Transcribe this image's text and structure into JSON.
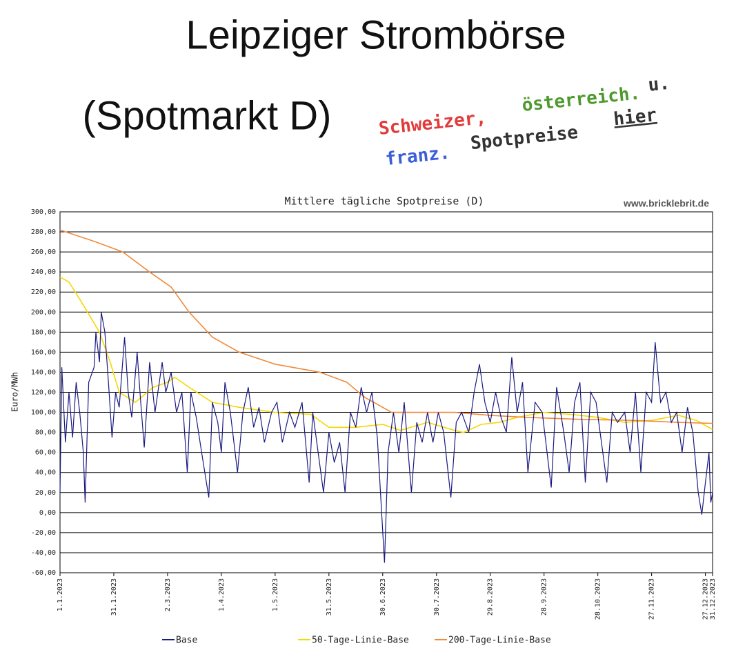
{
  "header": {
    "title": "Leipziger Strombörse",
    "subtitle": "(Spotmarkt D)",
    "link": [
      {
        "text": "Schweizer,",
        "color": "#e23b3b"
      },
      {
        "text": "österreich.",
        "color": "#4e9a2e"
      },
      {
        "text": "u.",
        "color": "#333333"
      },
      {
        "text": "franz.",
        "color": "#3a5fd8"
      },
      {
        "text": "Spotpreise",
        "color": "#333333"
      },
      {
        "text": "hier",
        "color": "#333333"
      }
    ]
  },
  "chart_data": {
    "type": "line",
    "title": "Mittlere tägliche Spotpreise (D)",
    "watermark": "www.bricklebrit.de",
    "y_label": "Euro/MWh",
    "grid": true,
    "xlim": [
      0,
      364
    ],
    "ylim": [
      -60,
      300
    ],
    "xticks": [
      {
        "value": 0,
        "label": "1.1.2023"
      },
      {
        "value": 30,
        "label": "31.1.2023"
      },
      {
        "value": 60,
        "label": "2.3.2023"
      },
      {
        "value": 90,
        "label": "1.4.2023"
      },
      {
        "value": 120,
        "label": "1.5.2023"
      },
      {
        "value": 150,
        "label": "31.5.2023"
      },
      {
        "value": 180,
        "label": "30.6.2023"
      },
      {
        "value": 210,
        "label": "30.7.2023"
      },
      {
        "value": 240,
        "label": "29.8.2023"
      },
      {
        "value": 270,
        "label": "28.9.2023"
      },
      {
        "value": 300,
        "label": "28.10.2023"
      },
      {
        "value": 330,
        "label": "27.11.2023"
      },
      {
        "value": 360,
        "label": "27.12.2023"
      },
      {
        "value": 364,
        "label": "31.12.2023"
      }
    ],
    "yticks": [
      {
        "value": -60,
        "label": "-60,00"
      },
      {
        "value": -40,
        "label": "-40,00"
      },
      {
        "value": -20,
        "label": "-20,00"
      },
      {
        "value": 0,
        "label": "0,00"
      },
      {
        "value": 20,
        "label": "20,00"
      },
      {
        "value": 40,
        "label": "40,00"
      },
      {
        "value": 60,
        "label": "60,00"
      },
      {
        "value": 80,
        "label": "80,00"
      },
      {
        "value": 100,
        "label": "100,00"
      },
      {
        "value": 120,
        "label": "120,00"
      },
      {
        "value": 140,
        "label": "140,00"
      },
      {
        "value": 160,
        "label": "160,00"
      },
      {
        "value": 180,
        "label": "180,00"
      },
      {
        "value": 200,
        "label": "200,00"
      },
      {
        "value": 220,
        "label": "220,00"
      },
      {
        "value": 240,
        "label": "240,00"
      },
      {
        "value": 260,
        "label": "260,00"
      },
      {
        "value": 280,
        "label": "280,00"
      },
      {
        "value": 300,
        "label": "300,00"
      }
    ],
    "series": [
      {
        "name": "Base",
        "color": "#1a1a80",
        "x": [
          0,
          1,
          3,
          5,
          7,
          9,
          11,
          13,
          14,
          16,
          19,
          20,
          22,
          23,
          25,
          27,
          29,
          31,
          33,
          36,
          38,
          40,
          43,
          45,
          47,
          50,
          53,
          57,
          59,
          62,
          65,
          68,
          71,
          73,
          76,
          79,
          83,
          85,
          88,
          90,
          92,
          95,
          99,
          102,
          105,
          108,
          111,
          114,
          118,
          121,
          124,
          128,
          131,
          135,
          139,
          141,
          144,
          147,
          150,
          153,
          156,
          159,
          162,
          165,
          168,
          171,
          174,
          177,
          181,
          183,
          186,
          189,
          192,
          196,
          199,
          202,
          205,
          208,
          211,
          214,
          218,
          221,
          224,
          228,
          231,
          234,
          237,
          240,
          243,
          246,
          249,
          252,
          255,
          258,
          261,
          265,
          269,
          274,
          277,
          281,
          284,
          287,
          290,
          293,
          296,
          299,
          302,
          305,
          308,
          311,
          315,
          318,
          321,
          324,
          327,
          330,
          332,
          335,
          338,
          341,
          344,
          347,
          350,
          353,
          356,
          358,
          360,
          362,
          363,
          364
        ],
        "values": [
          20,
          145,
          70,
          120,
          75,
          130,
          100,
          60,
          10,
          130,
          145,
          180,
          150,
          200,
          180,
          130,
          75,
          120,
          105,
          175,
          120,
          95,
          160,
          110,
          65,
          150,
          100,
          150,
          120,
          140,
          100,
          120,
          40,
          120,
          95,
          60,
          15,
          110,
          90,
          60,
          130,
          100,
          40,
          100,
          125,
          85,
          105,
          70,
          100,
          110,
          70,
          100,
          85,
          110,
          30,
          100,
          60,
          20,
          80,
          50,
          70,
          20,
          100,
          85,
          125,
          100,
          120,
          75,
          -50,
          60,
          100,
          60,
          110,
          20,
          90,
          70,
          100,
          70,
          100,
          80,
          15,
          90,
          100,
          80,
          120,
          148,
          110,
          90,
          120,
          95,
          80,
          155,
          100,
          130,
          40,
          110,
          100,
          25,
          125,
          80,
          40,
          110,
          130,
          30,
          120,
          110,
          70,
          30,
          100,
          90,
          100,
          60,
          120,
          40,
          120,
          110,
          170,
          110,
          120,
          90,
          100,
          60,
          105,
          80,
          20,
          -2,
          30,
          60,
          10,
          20
        ]
      },
      {
        "name": "50-Tage-Linie-Base",
        "color": "#f5d800",
        "x": [
          0,
          5,
          12,
          22,
          28,
          33,
          42,
          52,
          60,
          64,
          72,
          85,
          100,
          120,
          140,
          150,
          165,
          180,
          190,
          205,
          220,
          225,
          235,
          245,
          255,
          270,
          285,
          300,
          315,
          330,
          345,
          355,
          364
        ],
        "values": [
          235,
          230,
          210,
          180,
          150,
          120,
          110,
          125,
          130,
          135,
          125,
          110,
          105,
          100,
          98,
          85,
          85,
          88,
          82,
          90,
          82,
          80,
          88,
          90,
          95,
          100,
          98,
          95,
          90,
          92,
          97,
          92,
          83
        ]
      },
      {
        "name": "200-Tage-Linie-Base",
        "color": "#f08a3c",
        "x": [
          0,
          20,
          35,
          50,
          62,
          72,
          85,
          100,
          120,
          145,
          160,
          170,
          185,
          220,
          240,
          260,
          290,
          320,
          345,
          364
        ],
        "values": [
          282,
          270,
          260,
          240,
          225,
          200,
          175,
          160,
          148,
          140,
          130,
          115,
          100,
          100,
          97,
          95,
          93,
          92,
          90,
          89
        ]
      }
    ]
  }
}
